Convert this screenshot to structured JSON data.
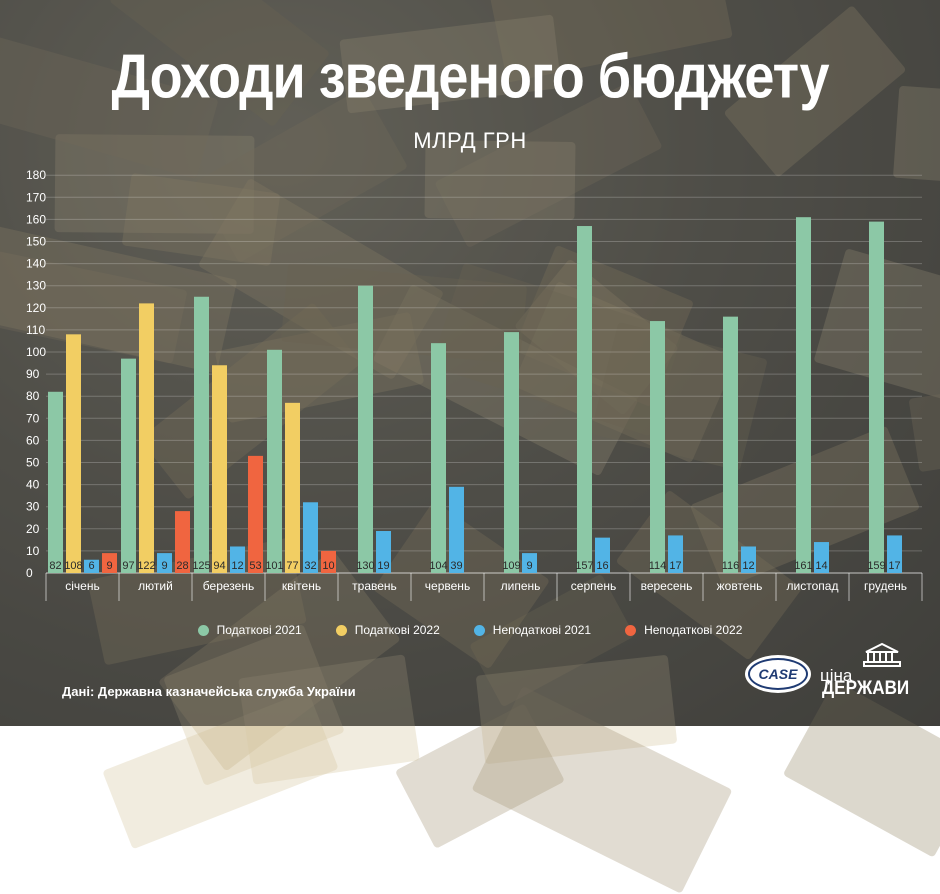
{
  "title": "Доходи зведеного бюджету",
  "subtitle": "МЛРД ГРН",
  "source": "Дані: Державна казначейська служба України",
  "logos": {
    "case": "CASE",
    "cina_line1": "ціна",
    "cina_line2": "ДЕРЖАВИ"
  },
  "colors": {
    "green": "#8cc8a6",
    "yellow": "#f2ce63",
    "blue": "#52b4e6",
    "red": "#f06540"
  },
  "chart_data": {
    "type": "bar",
    "title": "Доходи зведеного бюджету",
    "ylabel": "МЛРД ГРН",
    "ylim": [
      0,
      180
    ],
    "yticks": [
      0,
      10,
      20,
      30,
      40,
      50,
      60,
      70,
      80,
      90,
      100,
      110,
      120,
      130,
      140,
      150,
      160,
      170,
      180
    ],
    "grid": true,
    "legend_position": "bottom",
    "categories": [
      "січень",
      "лютий",
      "березень",
      "квітень",
      "травень",
      "червень",
      "липень",
      "серпень",
      "вересень",
      "жовтень",
      "листопад",
      "грудень"
    ],
    "series": [
      {
        "name": "Податкові 2021",
        "color": "#8cc8a6",
        "values": [
          82,
          97,
          125,
          101,
          130,
          104,
          109,
          157,
          114,
          116,
          161,
          159
        ]
      },
      {
        "name": "Податкові 2022",
        "color": "#f2ce63",
        "values": [
          108,
          122,
          94,
          77,
          null,
          null,
          null,
          null,
          null,
          null,
          null,
          null
        ]
      },
      {
        "name": "Неподаткові 2021",
        "color": "#52b4e6",
        "values": [
          6,
          9,
          12,
          32,
          19,
          39,
          9,
          16,
          17,
          12,
          14,
          17
        ]
      },
      {
        "name": "Неподаткові 2022",
        "color": "#f06540",
        "values": [
          9,
          28,
          53,
          10,
          null,
          null,
          null,
          null,
          null,
          null,
          null,
          null
        ]
      }
    ]
  }
}
